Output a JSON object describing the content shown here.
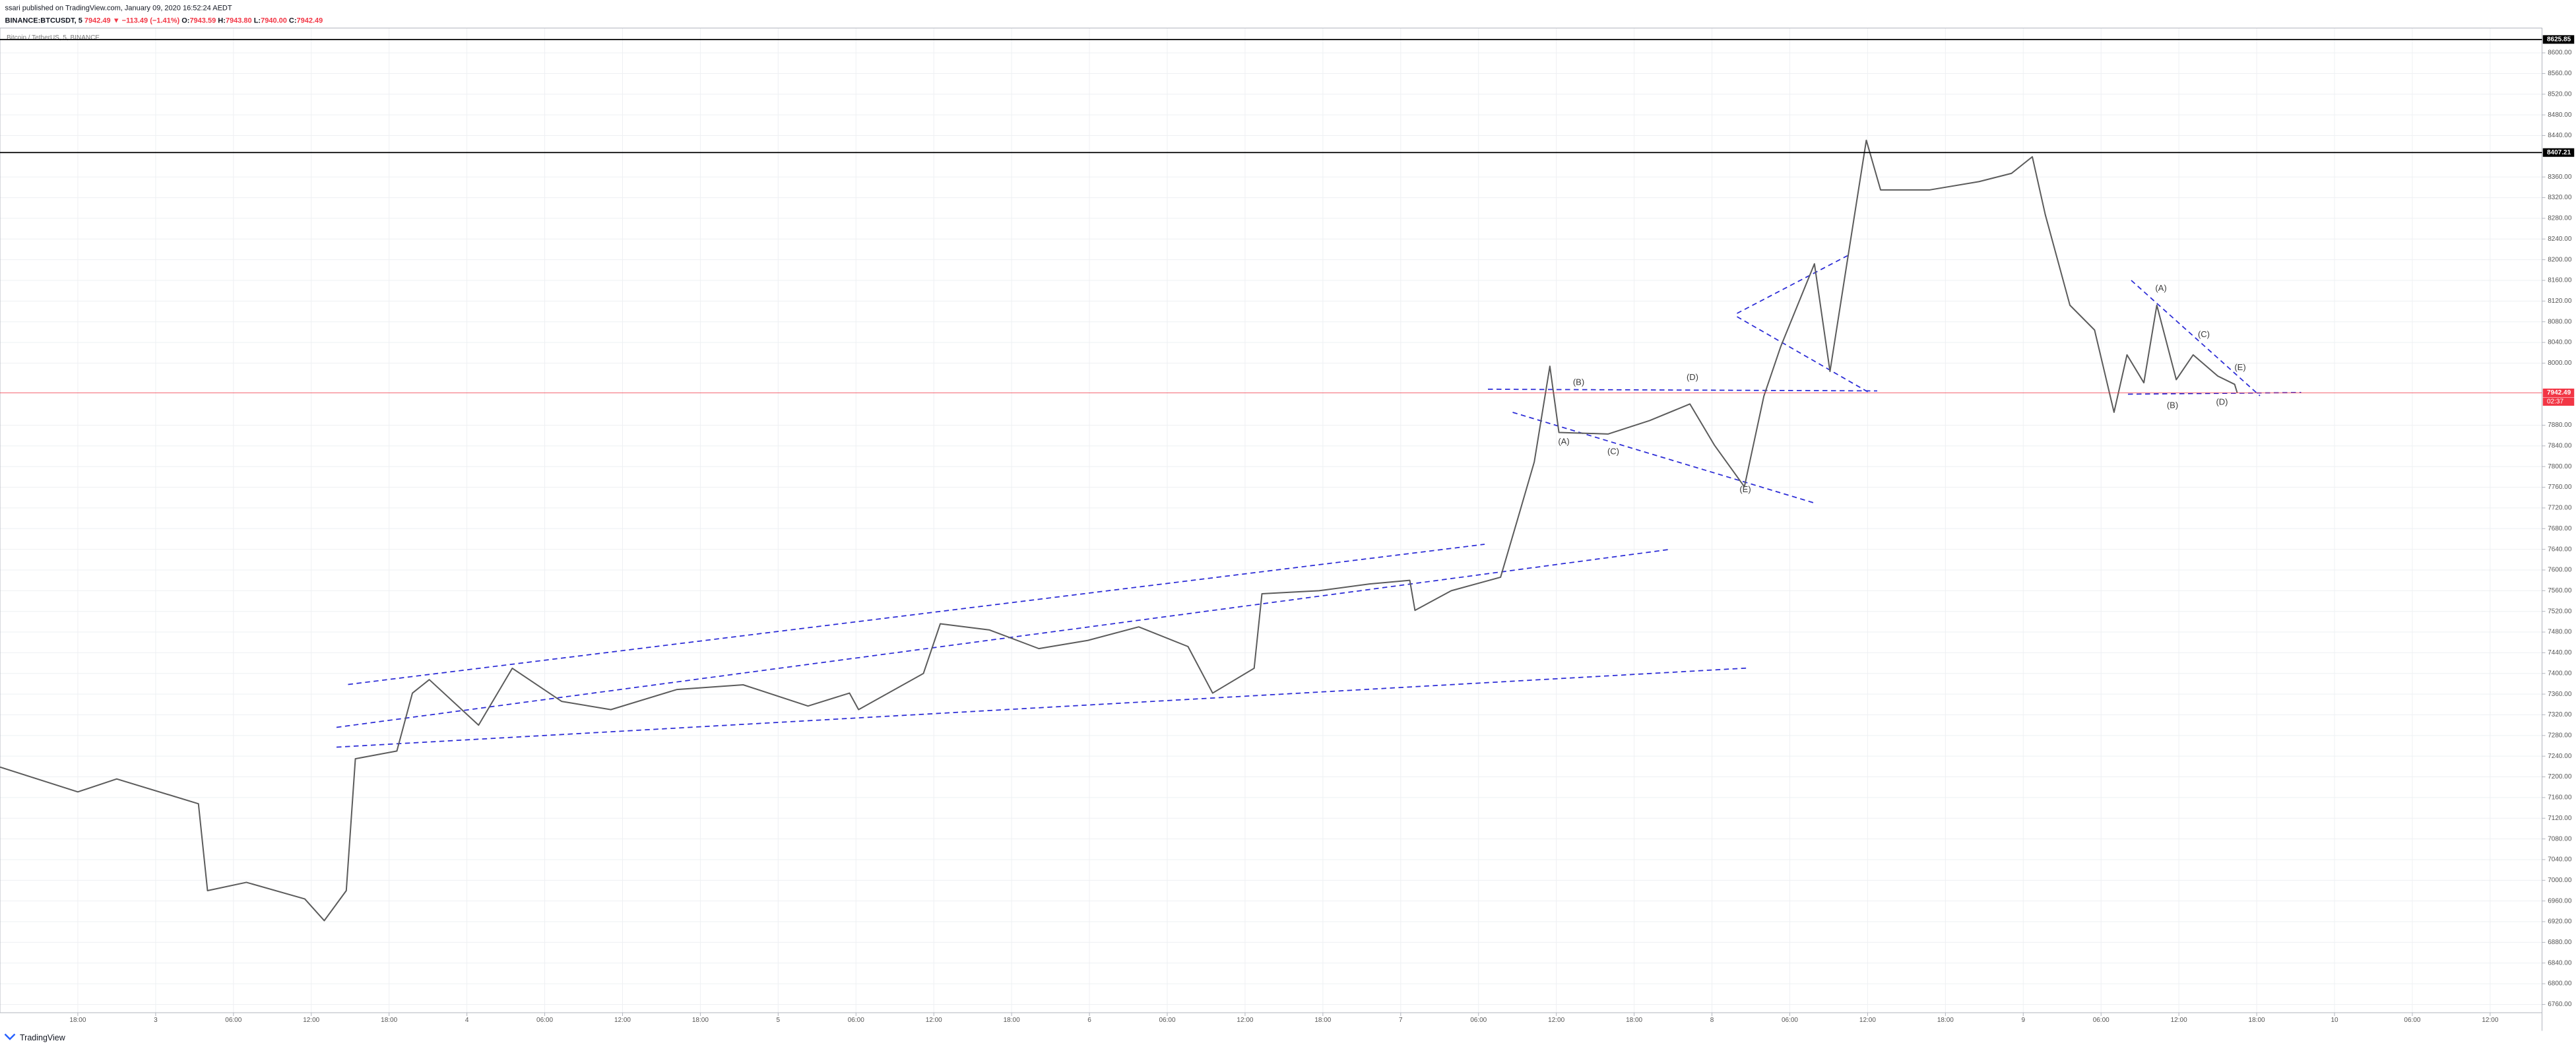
{
  "header": {
    "byline": "ssari published on TradingView.com, January 09, 2020 16:52:24 AEDT",
    "symbol": "BINANCE:BTCUSDT, 5",
    "last": "7942.49",
    "change": "▼ −113.49 (−1.41%)",
    "open_label": "O:",
    "open": "7943.59",
    "high_label": "H:",
    "high": "7943.80",
    "low_label": "L:",
    "low": "7940.00",
    "close_label": "C:",
    "close": "7942.49",
    "legend": "Bitcoin / TetherUS, 5, BINANCE"
  },
  "footer": {
    "brand": "TradingView"
  },
  "chart_data": {
    "type": "line",
    "color": "#5b5b5b",
    "x": [
      -12,
      -6,
      -3,
      3.3,
      4,
      7,
      11.5,
      13,
      14.7,
      15.4,
      18.6,
      19.8,
      21.1,
      24.9,
      27.5,
      31.3,
      35.1,
      40.2,
      45.3,
      50.3,
      53.5,
      54.2,
      59.2,
      60.5,
      64.3,
      68.1,
      71.9,
      75.8,
      79.6,
      81.5,
      84.7,
      85.3,
      89.7,
      93.6,
      96.7,
      97.1,
      99.9,
      103.7,
      105,
      106.3,
      107.5,
      108.2,
      112,
      115.2,
      118.3,
      120.2,
      122.5,
      124,
      125.3,
      127.9,
      129.1,
      130.4,
      131.9,
      133,
      136.8,
      140.6,
      143.1,
      144.7,
      145.7,
      147.6,
      149.5,
      151,
      152,
      153.3,
      154.3,
      155.8,
      157.1,
      159,
      160.3,
      160.5
    ],
    "values": [
      7219,
      7171,
      7196,
      7148,
      6980,
      6996,
      6964,
      6922,
      6980,
      7235,
      7250,
      7362,
      7388,
      7300,
      7410,
      7346,
      7330,
      7369,
      7378,
      7337,
      7362,
      7330,
      7400,
      7496,
      7484,
      7448,
      7464,
      7490,
      7452,
      7362,
      7410,
      7554,
      7560,
      7573,
      7580,
      7522,
      7560,
      7586,
      7697,
      7809,
      7994,
      7866,
      7863,
      7889,
      7921,
      7841,
      7761,
      7936,
      8032,
      8192,
      7984,
      8192,
      8431,
      8335,
      8335,
      8351,
      8367,
      8399,
      8287,
      8112,
      8064,
      7905,
      8016,
      7962,
      8112,
      7968,
      8016,
      7975,
      7959,
      7942.49
    ],
    "xlim": [
      -12,
      184
    ],
    "ylim": [
      6744,
      8632
    ],
    "grid": true,
    "xticks": [
      {
        "value": -6,
        "label": "18:00"
      },
      {
        "value": 0,
        "label": "3"
      },
      {
        "value": 6,
        "label": "06:00"
      },
      {
        "value": 12,
        "label": "12:00"
      },
      {
        "value": 18,
        "label": "18:00"
      },
      {
        "value": 24,
        "label": "4"
      },
      {
        "value": 30,
        "label": "06:00"
      },
      {
        "value": 36,
        "label": "12:00"
      },
      {
        "value": 42,
        "label": "18:00"
      },
      {
        "value": 48,
        "label": "5"
      },
      {
        "value": 54,
        "label": "06:00"
      },
      {
        "value": 60,
        "label": "12:00"
      },
      {
        "value": 66,
        "label": "18:00"
      },
      {
        "value": 72,
        "label": "6"
      },
      {
        "value": 78,
        "label": "06:00"
      },
      {
        "value": 84,
        "label": "12:00"
      },
      {
        "value": 90,
        "label": "18:00"
      },
      {
        "value": 96,
        "label": "7"
      },
      {
        "value": 102,
        "label": "06:00"
      },
      {
        "value": 108,
        "label": "12:00"
      },
      {
        "value": 114,
        "label": "18:00"
      },
      {
        "value": 120,
        "label": "8"
      },
      {
        "value": 126,
        "label": "06:00"
      },
      {
        "value": 132,
        "label": "12:00"
      },
      {
        "value": 138,
        "label": "18:00"
      },
      {
        "value": 144,
        "label": "9"
      },
      {
        "value": 150,
        "label": "06:00"
      },
      {
        "value": 156,
        "label": "12:00"
      },
      {
        "value": 162,
        "label": "18:00"
      },
      {
        "value": 168,
        "label": "10"
      },
      {
        "value": 174,
        "label": "06:00"
      },
      {
        "value": 180,
        "label": "12:00"
      }
    ],
    "yticks": [
      {
        "value": 6760,
        "label": "6760.00"
      },
      {
        "value": 6800,
        "label": "6800.00"
      },
      {
        "value": 6840,
        "label": "6840.00"
      },
      {
        "value": 6880,
        "label": "6880.00"
      },
      {
        "value": 6920,
        "label": "6920.00"
      },
      {
        "value": 6960,
        "label": "6960.00"
      },
      {
        "value": 7000,
        "label": "7000.00"
      },
      {
        "value": 7040,
        "label": "7040.00"
      },
      {
        "value": 7080,
        "label": "7080.00"
      },
      {
        "value": 7120,
        "label": "7120.00"
      },
      {
        "value": 7160,
        "label": "7160.00"
      },
      {
        "value": 7200,
        "label": "7200.00"
      },
      {
        "value": 7240,
        "label": "7240.00"
      },
      {
        "value": 7280,
        "label": "7280.00"
      },
      {
        "value": 7320,
        "label": "7320.00"
      },
      {
        "value": 7360,
        "label": "7360.00"
      },
      {
        "value": 7400,
        "label": "7400.00"
      },
      {
        "value": 7440,
        "label": "7440.00"
      },
      {
        "value": 7480,
        "label": "7480.00"
      },
      {
        "value": 7520,
        "label": "7520.00"
      },
      {
        "value": 7560,
        "label": "7560.00"
      },
      {
        "value": 7600,
        "label": "7600.00"
      },
      {
        "value": 7640,
        "label": "7640.00"
      },
      {
        "value": 7680,
        "label": "7680.00"
      },
      {
        "value": 7720,
        "label": "7720.00"
      },
      {
        "value": 7760,
        "label": "7760.00"
      },
      {
        "value": 7800,
        "label": "7800.00"
      },
      {
        "value": 7840,
        "label": "7840.00"
      },
      {
        "value": 7880,
        "label": "7880.00"
      },
      {
        "value": 8000,
        "label": "8000.00"
      },
      {
        "value": 8040,
        "label": "8040.00"
      },
      {
        "value": 8080,
        "label": "8080.00"
      },
      {
        "value": 8120,
        "label": "8120.00"
      },
      {
        "value": 8160,
        "label": "8160.00"
      },
      {
        "value": 8200,
        "label": "8200.00"
      },
      {
        "value": 8240,
        "label": "8240.00"
      },
      {
        "value": 8280,
        "label": "8280.00"
      },
      {
        "value": 8320,
        "label": "8320.00"
      },
      {
        "value": 8360,
        "label": "8360.00"
      },
      {
        "value": 8440,
        "label": "8440.00"
      },
      {
        "value": 8480,
        "label": "8480.00"
      },
      {
        "value": 8520,
        "label": "8520.00"
      },
      {
        "value": 8560,
        "label": "8560.00"
      },
      {
        "value": 8600,
        "label": "8600.00"
      }
    ],
    "hlines": [
      {
        "value": 8625.85,
        "color": "#000000"
      },
      {
        "value": 8407.21,
        "color": "#000000"
      },
      {
        "value": 7942.49,
        "color": "#f23645"
      }
    ],
    "countdown": "02:37",
    "annotations": [
      "(A)",
      "(B)",
      "(C)",
      "(D)",
      "(E)",
      "(A)",
      "(B)",
      "(C)",
      "(D)",
      "(E)"
    ]
  }
}
